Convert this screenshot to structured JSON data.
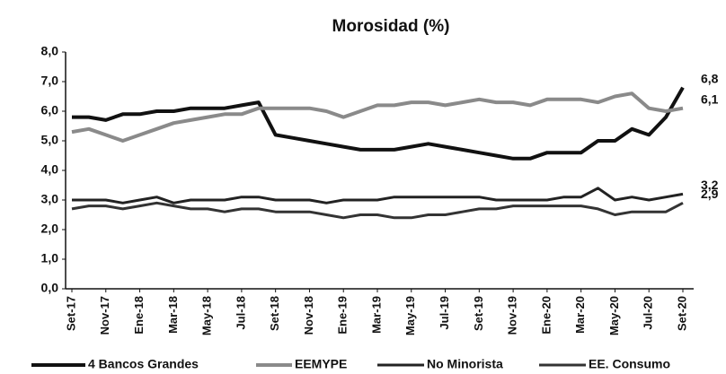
{
  "chart_data": {
    "type": "line",
    "title": "Morosidad (%)",
    "categories": [
      "Set-17",
      null,
      "Nov-17",
      null,
      "Ene-18",
      null,
      "Mar-18",
      null,
      "May-18",
      null,
      "Jul-18",
      null,
      "Set-18",
      null,
      "Nov-18",
      null,
      "Ene-19",
      null,
      "Mar-19",
      null,
      "May-19",
      null,
      "Jul-19",
      null,
      "Set-19",
      null,
      "Nov-19",
      null,
      "Ene-20",
      null,
      "Mar-20",
      null,
      "May-20",
      null,
      "Jul-20",
      null,
      "Set-20"
    ],
    "series": [
      {
        "name": "4 Bancos Grandes",
        "color": "#111111",
        "width": 4,
        "end_label": "6,8",
        "values": [
          5.8,
          5.8,
          5.7,
          5.9,
          5.9,
          6.0,
          6.0,
          6.1,
          6.1,
          6.1,
          6.2,
          6.3,
          5.2,
          5.1,
          5.0,
          4.9,
          4.8,
          4.7,
          4.7,
          4.7,
          4.8,
          4.9,
          4.8,
          4.7,
          4.6,
          4.5,
          4.4,
          4.4,
          4.6,
          4.6,
          4.6,
          5.0,
          5.0,
          5.4,
          5.2,
          5.8,
          6.8
        ]
      },
      {
        "name": "EEMYPE",
        "color": "#8a8a8a",
        "width": 4,
        "end_label": "6,1",
        "values": [
          5.3,
          5.4,
          5.2,
          5.0,
          5.2,
          5.4,
          5.6,
          5.7,
          5.8,
          5.9,
          5.9,
          6.1,
          6.1,
          6.1,
          6.1,
          6.0,
          5.8,
          6.0,
          6.2,
          6.2,
          6.3,
          6.3,
          6.2,
          6.3,
          6.4,
          6.3,
          6.3,
          6.2,
          6.4,
          6.4,
          6.4,
          6.3,
          6.5,
          6.6,
          6.1,
          6.0,
          6.1
        ]
      },
      {
        "name": "No Minorista",
        "color": "#222222",
        "width": 3,
        "end_label": "3,2",
        "values": [
          3.0,
          3.0,
          3.0,
          2.9,
          3.0,
          3.1,
          2.9,
          3.0,
          3.0,
          3.0,
          3.1,
          3.1,
          3.0,
          3.0,
          3.0,
          2.9,
          3.0,
          3.0,
          3.0,
          3.1,
          3.1,
          3.1,
          3.1,
          3.1,
          3.1,
          3.0,
          3.0,
          3.0,
          3.0,
          3.1,
          3.1,
          3.4,
          3.0,
          3.1,
          3.0,
          3.1,
          3.2
        ]
      },
      {
        "name": "EE. Consumo",
        "color": "#333333",
        "width": 3,
        "end_label": "2,9",
        "values": [
          2.7,
          2.8,
          2.8,
          2.7,
          2.8,
          2.9,
          2.8,
          2.7,
          2.7,
          2.6,
          2.7,
          2.7,
          2.6,
          2.6,
          2.6,
          2.5,
          2.4,
          2.5,
          2.5,
          2.4,
          2.4,
          2.5,
          2.5,
          2.6,
          2.7,
          2.7,
          2.8,
          2.8,
          2.8,
          2.8,
          2.8,
          2.7,
          2.5,
          2.6,
          2.6,
          2.6,
          2.9
        ]
      }
    ],
    "ylim": [
      0,
      8
    ],
    "yticks": [
      {
        "value": 0,
        "label": "0,0"
      },
      {
        "value": 1,
        "label": "1,0"
      },
      {
        "value": 2,
        "label": "2,0"
      },
      {
        "value": 3,
        "label": "3,0"
      },
      {
        "value": 4,
        "label": "4,0"
      },
      {
        "value": 5,
        "label": "5,0"
      },
      {
        "value": 6,
        "label": "6,0"
      },
      {
        "value": 7,
        "label": "7,0"
      },
      {
        "value": 8,
        "label": "8,0"
      }
    ],
    "grid": false,
    "legend": "bottom"
  }
}
